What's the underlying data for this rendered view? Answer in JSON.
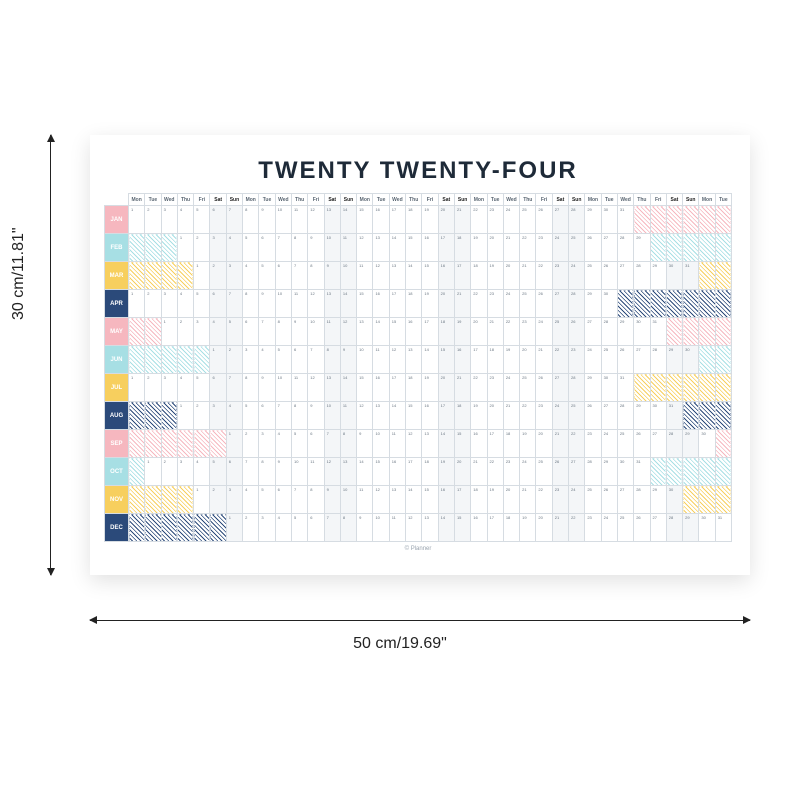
{
  "background_color": "#ffffff",
  "dimensions": {
    "height_label": "30 cm/11.81\"",
    "width_label": "50 cm/19.69\""
  },
  "calendar": {
    "title": "TWENTY TWENTY-FOUR",
    "title_fontsize": 24,
    "title_color": "#1e2a38",
    "footer": "© Planner",
    "grid_color": "#d6dce2",
    "weekend_bg": "#f4f6f8",
    "columns": 37,
    "day_header_pattern": [
      "Mon",
      "Tue",
      "Wed",
      "Thu",
      "Fri",
      "Sat",
      "Sun"
    ],
    "months": [
      {
        "abbr": "JAN",
        "color": "#f6b7bf",
        "days": 31,
        "start": 0
      },
      {
        "abbr": "FEB",
        "color": "#a7dfe4",
        "days": 29,
        "start": 3
      },
      {
        "abbr": "MAR",
        "color": "#f7cf5e",
        "days": 31,
        "start": 4
      },
      {
        "abbr": "APR",
        "color": "#2b4a7a",
        "days": 30,
        "start": 0
      },
      {
        "abbr": "MAY",
        "color": "#f6b7bf",
        "days": 31,
        "start": 2
      },
      {
        "abbr": "JUN",
        "color": "#a7dfe4",
        "days": 30,
        "start": 5
      },
      {
        "abbr": "JUL",
        "color": "#f7cf5e",
        "days": 31,
        "start": 0
      },
      {
        "abbr": "AUG",
        "color": "#2b4a7a",
        "days": 31,
        "start": 3
      },
      {
        "abbr": "SEP",
        "color": "#f6b7bf",
        "days": 30,
        "start": 6
      },
      {
        "abbr": "OCT",
        "color": "#a7dfe4",
        "days": 31,
        "start": 1
      },
      {
        "abbr": "NOV",
        "color": "#f7cf5e",
        "days": 30,
        "start": 4
      },
      {
        "abbr": "DEC",
        "color": "#2b4a7a",
        "days": 31,
        "start": 6
      }
    ],
    "hatch_colors": [
      "#f6b7bf",
      "#a7dfe4",
      "#f7cf5e",
      "#2b4a7a"
    ]
  }
}
